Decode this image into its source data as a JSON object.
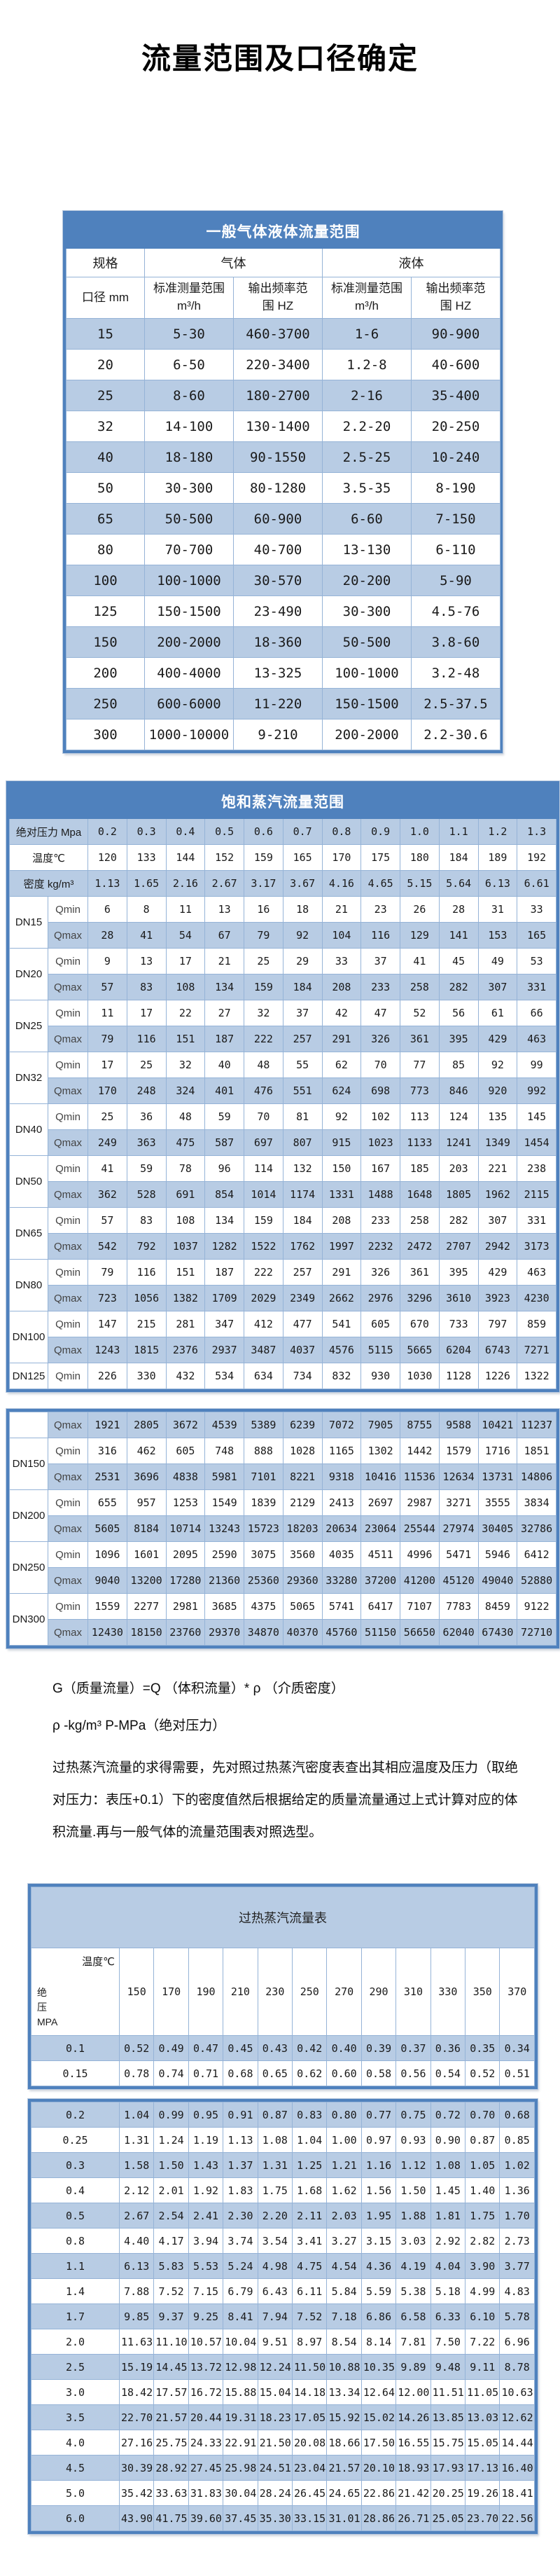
{
  "page_title": "流量范围及口径确定",
  "general_table": {
    "title": "一般气体液体流量范围",
    "headers": {
      "spec": "规格",
      "gas": "气体",
      "liquid": "液体",
      "diameter": "口径 mm",
      "measure_range": "标准测量范围\nm³/h",
      "freq_range": "输出频率范\n围 HZ"
    },
    "rows": [
      [
        "15",
        "5-30",
        "460-3700",
        "1-6",
        "90-900"
      ],
      [
        "20",
        "6-50",
        "220-3400",
        "1.2-8",
        "40-600"
      ],
      [
        "25",
        "8-60",
        "180-2700",
        "2-16",
        "35-400"
      ],
      [
        "32",
        "14-100",
        "130-1400",
        "2.2-20",
        "20-250"
      ],
      [
        "40",
        "18-180",
        "90-1550",
        "2.5-25",
        "10-240"
      ],
      [
        "50",
        "30-300",
        "80-1280",
        "3.5-35",
        "8-190"
      ],
      [
        "65",
        "50-500",
        "60-900",
        "6-60",
        "7-150"
      ],
      [
        "80",
        "70-700",
        "40-700",
        "13-130",
        "6-110"
      ],
      [
        "100",
        "100-1000",
        "30-570",
        "20-200",
        "5-90"
      ],
      [
        "125",
        "150-1500",
        "23-490",
        "30-300",
        "4.5-76"
      ],
      [
        "150",
        "200-2000",
        "18-360",
        "50-500",
        "3.8-60"
      ],
      [
        "200",
        "400-4000",
        "13-325",
        "100-1000",
        "3.2-48"
      ],
      [
        "250",
        "600-6000",
        "11-220",
        "150-1500",
        "2.5-37.5"
      ],
      [
        "300",
        "1000-10000",
        "9-210",
        "200-2000",
        "2.2-30.6"
      ]
    ]
  },
  "saturated_table": {
    "title": "饱和蒸汽流量范围",
    "pressure_label": "绝对压力 Mpa",
    "pressures": [
      "0.2",
      "0.3",
      "0.4",
      "0.5",
      "0.6",
      "0.7",
      "0.8",
      "0.9",
      "1.0",
      "1.1",
      "1.2",
      "1.3"
    ],
    "temperature_label": "温度℃",
    "temperatures": [
      "120",
      "133",
      "144",
      "152",
      "159",
      "165",
      "170",
      "175",
      "180",
      "184",
      "189",
      "192"
    ],
    "density_label": "密度 kg/m³",
    "densities": [
      "1.13",
      "1.65",
      "2.16",
      "2.67",
      "3.17",
      "3.67",
      "4.16",
      "4.65",
      "5.15",
      "5.64",
      "6.13",
      "6.61"
    ],
    "qmin_label": "Qmin",
    "qmax_label": "Qmax",
    "groups": [
      {
        "dn": "DN15",
        "qmin": [
          "6",
          "8",
          "11",
          "13",
          "16",
          "18",
          "21",
          "23",
          "26",
          "28",
          "31",
          "33"
        ],
        "qmax": [
          "28",
          "41",
          "54",
          "67",
          "79",
          "92",
          "104",
          "116",
          "129",
          "141",
          "153",
          "165"
        ]
      },
      {
        "dn": "DN20",
        "qmin": [
          "9",
          "13",
          "17",
          "21",
          "25",
          "29",
          "33",
          "37",
          "41",
          "45",
          "49",
          "53"
        ],
        "qmax": [
          "57",
          "83",
          "108",
          "134",
          "159",
          "184",
          "208",
          "233",
          "258",
          "282",
          "307",
          "331"
        ]
      },
      {
        "dn": "DN25",
        "qmin": [
          "11",
          "17",
          "22",
          "27",
          "32",
          "37",
          "42",
          "47",
          "52",
          "56",
          "61",
          "66"
        ],
        "qmax": [
          "79",
          "116",
          "151",
          "187",
          "222",
          "257",
          "291",
          "326",
          "361",
          "395",
          "429",
          "463"
        ]
      },
      {
        "dn": "DN32",
        "qmin": [
          "17",
          "25",
          "32",
          "40",
          "48",
          "55",
          "62",
          "70",
          "77",
          "85",
          "92",
          "99"
        ],
        "qmax": [
          "170",
          "248",
          "324",
          "401",
          "476",
          "551",
          "624",
          "698",
          "773",
          "846",
          "920",
          "992"
        ]
      },
      {
        "dn": "DN40",
        "qmin": [
          "25",
          "36",
          "48",
          "59",
          "70",
          "81",
          "92",
          "102",
          "113",
          "124",
          "135",
          "145"
        ],
        "qmax": [
          "249",
          "363",
          "475",
          "587",
          "697",
          "807",
          "915",
          "1023",
          "1133",
          "1241",
          "1349",
          "1454"
        ]
      },
      {
        "dn": "DN50",
        "qmin": [
          "41",
          "59",
          "78",
          "96",
          "114",
          "132",
          "150",
          "167",
          "185",
          "203",
          "221",
          "238"
        ],
        "qmax": [
          "362",
          "528",
          "691",
          "854",
          "1014",
          "1174",
          "1331",
          "1488",
          "1648",
          "1805",
          "1962",
          "2115"
        ]
      },
      {
        "dn": "DN65",
        "qmin": [
          "57",
          "83",
          "108",
          "134",
          "159",
          "184",
          "208",
          "233",
          "258",
          "282",
          "307",
          "331"
        ],
        "qmax": [
          "542",
          "792",
          "1037",
          "1282",
          "1522",
          "1762",
          "1997",
          "2232",
          "2472",
          "2707",
          "2942",
          "3173"
        ]
      },
      {
        "dn": "DN80",
        "qmin": [
          "79",
          "116",
          "151",
          "187",
          "222",
          "257",
          "291",
          "326",
          "361",
          "395",
          "429",
          "463"
        ],
        "qmax": [
          "723",
          "1056",
          "1382",
          "1709",
          "2029",
          "2349",
          "2662",
          "2976",
          "3296",
          "3610",
          "3923",
          "4230"
        ]
      },
      {
        "dn": "DN100",
        "qmin": [
          "147",
          "215",
          "281",
          "347",
          "412",
          "477",
          "541",
          "605",
          "670",
          "733",
          "797",
          "859"
        ],
        "qmax": [
          "1243",
          "1815",
          "2376",
          "2937",
          "3487",
          "4037",
          "4576",
          "5115",
          "5665",
          "6204",
          "6743",
          "7271"
        ]
      },
      {
        "dn": "DN125",
        "qmin": [
          "226",
          "330",
          "432",
          "534",
          "634",
          "734",
          "832",
          "930",
          "1030",
          "1128",
          "1226",
          "1322"
        ]
      }
    ]
  },
  "saturated_table_cont": {
    "orphan_qmax": [
      "1921",
      "2805",
      "3672",
      "4539",
      "5389",
      "6239",
      "7072",
      "7905",
      "8755",
      "9588",
      "10421",
      "11237"
    ],
    "groups": [
      {
        "dn": "DN150",
        "qmin": [
          "316",
          "462",
          "605",
          "748",
          "888",
          "1028",
          "1165",
          "1302",
          "1442",
          "1579",
          "1716",
          "1851"
        ],
        "qmax": [
          "2531",
          "3696",
          "4838",
          "5981",
          "7101",
          "8221",
          "9318",
          "10416",
          "11536",
          "12634",
          "13731",
          "14806"
        ]
      },
      {
        "dn": "DN200",
        "qmin": [
          "655",
          "957",
          "1253",
          "1549",
          "1839",
          "2129",
          "2413",
          "2697",
          "2987",
          "3271",
          "3555",
          "3834"
        ],
        "qmax": [
          "5605",
          "8184",
          "10714",
          "13243",
          "15723",
          "18203",
          "20634",
          "23064",
          "25544",
          "27974",
          "30405",
          "32786"
        ]
      },
      {
        "dn": "DN250",
        "qmin": [
          "1096",
          "1601",
          "2095",
          "2590",
          "3075",
          "3560",
          "4035",
          "4511",
          "4996",
          "5471",
          "5946",
          "6412"
        ],
        "qmax": [
          "9040",
          "13200",
          "17280",
          "21360",
          "25360",
          "29360",
          "33280",
          "37200",
          "41200",
          "45120",
          "49040",
          "52880"
        ]
      },
      {
        "dn": "DN300",
        "qmin": [
          "1559",
          "2277",
          "2981",
          "3685",
          "4375",
          "5065",
          "5741",
          "6417",
          "7107",
          "7783",
          "8459",
          "9122"
        ],
        "qmax": [
          "12430",
          "18150",
          "23760",
          "29370",
          "34870",
          "40370",
          "45760",
          "51150",
          "56650",
          "62040",
          "67430",
          "72710"
        ]
      }
    ]
  },
  "notes": {
    "formula": "G（质量流量）=Q （体积流量）* ρ （介质密度）",
    "units": "ρ -kg/m³ P-MPa（绝对压力）",
    "paragraph": "过热蒸汽流量的求得需要，先对照过热蒸汽密度表查出其相应温度及压力（取绝对压力：表压+0.1）下的密度值然后根据给定的质量流量通过上式计算对应的体积流量.再与一般气体的流量范围表对照选型。"
  },
  "superheated_table": {
    "title": "过热蒸汽流量表",
    "corner_top": "温度℃",
    "corner_left": "绝\n压\nMPA",
    "temperatures": [
      "150",
      "170",
      "190",
      "210",
      "230",
      "250",
      "270",
      "290",
      "310",
      "330",
      "350",
      "370"
    ],
    "rows": [
      {
        "pressure": "0.1",
        "values": [
          "0.52",
          "0.49",
          "0.47",
          "0.45",
          "0.43",
          "0.42",
          "0.40",
          "0.39",
          "0.37",
          "0.36",
          "0.35",
          "0.34"
        ]
      },
      {
        "pressure": "0.15",
        "values": [
          "0.78",
          "0.74",
          "0.71",
          "0.68",
          "0.65",
          "0.62",
          "0.60",
          "0.58",
          "0.56",
          "0.54",
          "0.52",
          "0.51"
        ]
      }
    ]
  },
  "superheated_table_cont": {
    "rows": [
      {
        "pressure": "0.2",
        "values": [
          "1.04",
          "0.99",
          "0.95",
          "0.91",
          "0.87",
          "0.83",
          "0.80",
          "0.77",
          "0.75",
          "0.72",
          "0.70",
          "0.68"
        ]
      },
      {
        "pressure": "0.25",
        "values": [
          "1.31",
          "1.24",
          "1.19",
          "1.13",
          "1.08",
          "1.04",
          "1.00",
          "0.97",
          "0.93",
          "0.90",
          "0.87",
          "0.85"
        ]
      },
      {
        "pressure": "0.3",
        "values": [
          "1.58",
          "1.50",
          "1.43",
          "1.37",
          "1.31",
          "1.25",
          "1.21",
          "1.16",
          "1.12",
          "1.08",
          "1.05",
          "1.02"
        ]
      },
      {
        "pressure": "0.4",
        "values": [
          "2.12",
          "2.01",
          "1.92",
          "1.83",
          "1.75",
          "1.68",
          "1.62",
          "1.56",
          "1.50",
          "1.45",
          "1.40",
          "1.36"
        ]
      },
      {
        "pressure": "0.5",
        "values": [
          "2.67",
          "2.54",
          "2.41",
          "2.30",
          "2.20",
          "2.11",
          "2.03",
          "1.95",
          "1.88",
          "1.81",
          "1.75",
          "1.70"
        ]
      },
      {
        "pressure": "0.8",
        "values": [
          "4.40",
          "4.17",
          "3.94",
          "3.74",
          "3.54",
          "3.41",
          "3.27",
          "3.15",
          "3.03",
          "2.92",
          "2.82",
          "2.73"
        ]
      },
      {
        "pressure": "1.1",
        "values": [
          "6.13",
          "5.83",
          "5.53",
          "5.24",
          "4.98",
          "4.75",
          "4.54",
          "4.36",
          "4.19",
          "4.04",
          "3.90",
          "3.77"
        ]
      },
      {
        "pressure": "1.4",
        "values": [
          "7.88",
          "7.52",
          "7.15",
          "6.79",
          "6.43",
          "6.11",
          "5.84",
          "5.59",
          "5.38",
          "5.18",
          "4.99",
          "4.83"
        ]
      },
      {
        "pressure": "1.7",
        "values": [
          "9.85",
          "9.37",
          "9.25",
          "8.41",
          "7.94",
          "7.52",
          "7.18",
          "6.86",
          "6.58",
          "6.33",
          "6.10",
          "5.78"
        ]
      },
      {
        "pressure": "2.0",
        "values": [
          "11.63",
          "11.10",
          "10.57",
          "10.04",
          "9.51",
          "8.97",
          "8.54",
          "8.14",
          "7.81",
          "7.50",
          "7.22",
          "6.96"
        ]
      },
      {
        "pressure": "2.5",
        "values": [
          "15.19",
          "14.45",
          "13.72",
          "12.98",
          "12.24",
          "11.50",
          "10.88",
          "10.35",
          "9.89",
          "9.48",
          "9.11",
          "8.78"
        ]
      },
      {
        "pressure": "3.0",
        "values": [
          "18.42",
          "17.57",
          "16.72",
          "15.88",
          "15.04",
          "14.18",
          "13.34",
          "12.64",
          "12.00",
          "11.51",
          "11.05",
          "10.63"
        ]
      },
      {
        "pressure": "3.5",
        "values": [
          "22.70",
          "21.57",
          "20.44",
          "19.31",
          "18.23",
          "17.05",
          "15.92",
          "15.02",
          "14.26",
          "13.85",
          "13.03",
          "12.62"
        ]
      },
      {
        "pressure": "4.0",
        "values": [
          "27.16",
          "25.75",
          "24.33",
          "22.91",
          "21.50",
          "20.08",
          "18.66",
          "17.50",
          "16.55",
          "15.75",
          "15.05",
          "14.44"
        ]
      },
      {
        "pressure": "4.5",
        "values": [
          "30.39",
          "28.92",
          "27.45",
          "25.98",
          "24.51",
          "23.04",
          "21.57",
          "20.10",
          "18.93",
          "17.93",
          "17.13",
          "16.40"
        ]
      },
      {
        "pressure": "5.0",
        "values": [
          "35.42",
          "33.63",
          "31.83",
          "30.04",
          "28.24",
          "26.45",
          "24.65",
          "22.86",
          "21.42",
          "20.25",
          "19.26",
          "18.41"
        ]
      },
      {
        "pressure": "6.0",
        "values": [
          "43.90",
          "41.75",
          "39.60",
          "37.45",
          "35.30",
          "33.15",
          "31.01",
          "28.86",
          "26.71",
          "25.05",
          "23.70",
          "22.56"
        ]
      }
    ]
  }
}
